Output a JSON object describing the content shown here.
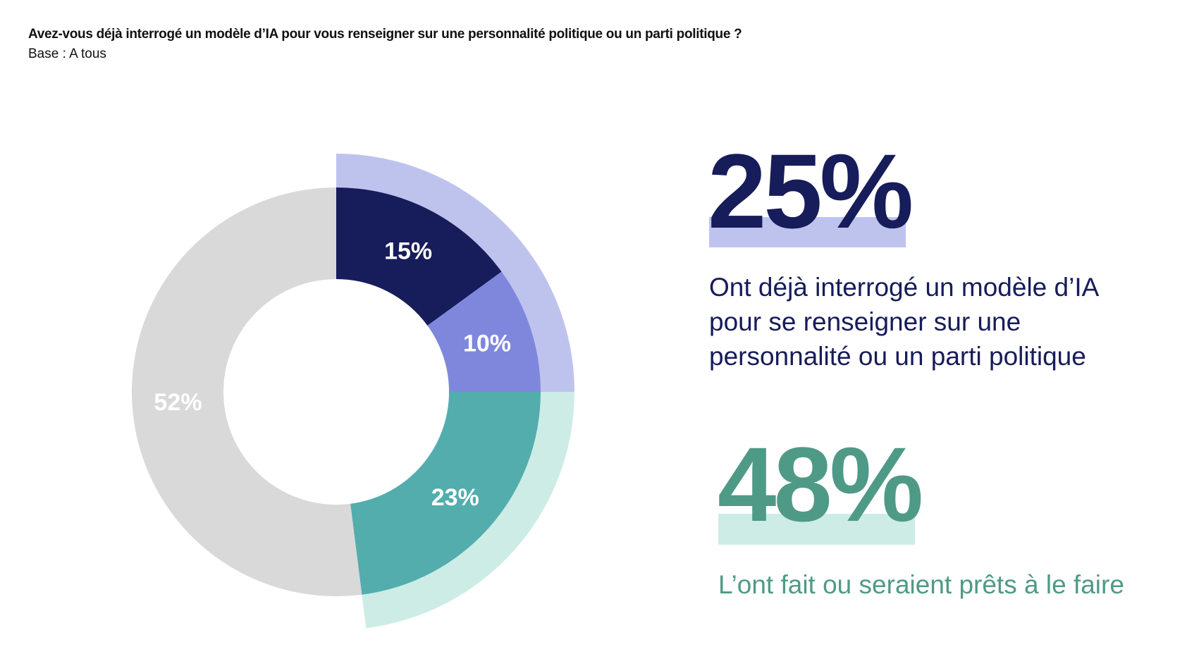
{
  "header": {
    "title": "Avez-vous déjà interrogé un modèle d’IA pour vous renseigner sur une personnalité politique ou un parti politique ?",
    "base": "Base : A tous"
  },
  "chart_data": {
    "type": "pie",
    "subtype": "donut",
    "slices": [
      {
        "label": "15%",
        "value": 15,
        "color": "#171c5a"
      },
      {
        "label": "10%",
        "value": 10,
        "color": "#7f87dd"
      },
      {
        "label": "23%",
        "value": 23,
        "color": "#53adad"
      },
      {
        "label": "52%",
        "value": 52,
        "color": "#d9d9d9"
      }
    ],
    "outer_bands": [
      {
        "value": 25,
        "start": 0,
        "color": "#bec3ee"
      },
      {
        "value": 23,
        "start": 25,
        "color": "#cdece6"
      }
    ]
  },
  "highlights": [
    {
      "value": "25%",
      "text": "Ont déjà interrogé un modèle d’IA pour se renseigner sur une personnalité ou un parti politique",
      "color": "#171c5a"
    },
    {
      "value": "48%",
      "text": "L’ont fait ou seraient prêts à le faire",
      "color": "#4f9a86"
    }
  ]
}
